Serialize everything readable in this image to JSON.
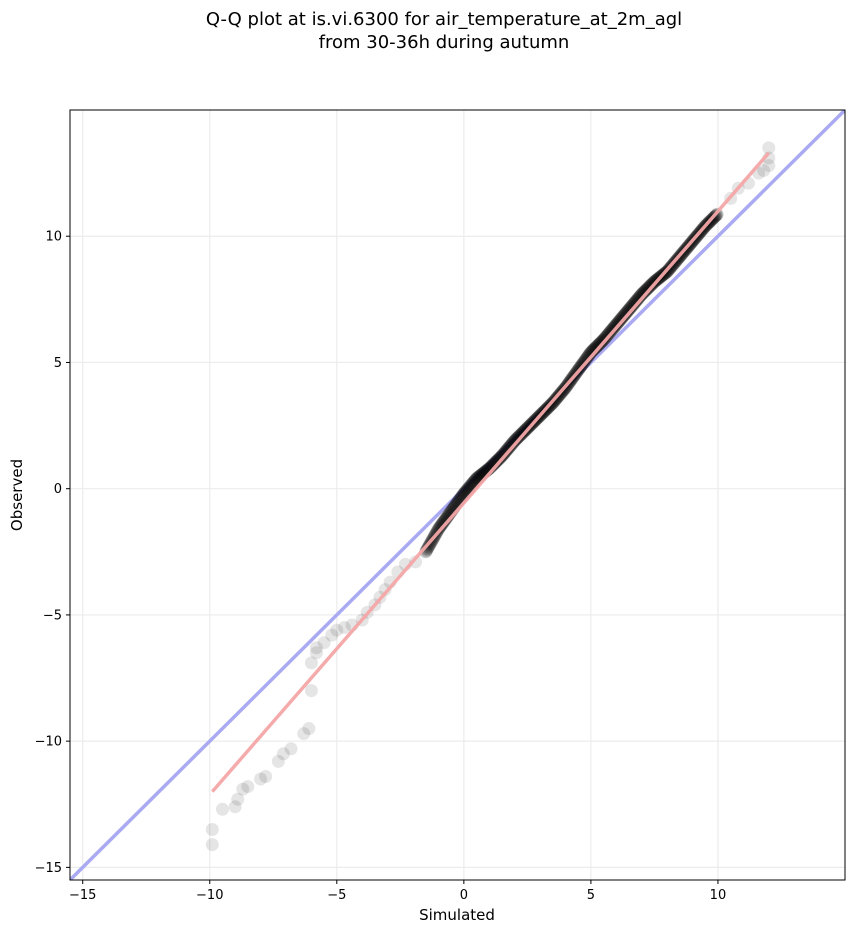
{
  "chart_data": {
    "type": "scatter",
    "title_line1": "Q-Q plot at is.vi.6300 for air_temperature_at_2m_agl",
    "title_line2": "from 30-36h during autumn",
    "xlabel": "Simulated",
    "ylabel": "Observed",
    "xlim": [
      -15.5,
      15.0
    ],
    "ylim": [
      -15.5,
      15.0
    ],
    "xticks": [
      -15,
      -10,
      -5,
      0,
      5,
      10
    ],
    "yticks": [
      -15,
      -10,
      -5,
      0,
      5,
      10
    ],
    "xtick_labels": [
      "−15",
      "−10",
      "−5",
      "0",
      "5",
      "10"
    ],
    "ytick_labels": [
      "−15",
      "−10",
      "−5",
      "0",
      "5",
      "10"
    ],
    "grid": true,
    "identity_line_color": "#aaaaf2",
    "fit_line_color": "#f4a6a6",
    "point_color": "#000000",
    "fit_line": {
      "x": [
        -9.9,
        12.0
      ],
      "y": [
        -12.0,
        13.3
      ]
    },
    "points_tail": [
      {
        "x": -9.9,
        "y": -14.1
      },
      {
        "x": -9.9,
        "y": -13.5
      },
      {
        "x": -9.5,
        "y": -12.7
      },
      {
        "x": -9.0,
        "y": -12.6
      },
      {
        "x": -8.9,
        "y": -12.3
      },
      {
        "x": -8.7,
        "y": -11.9
      },
      {
        "x": -8.5,
        "y": -11.8
      },
      {
        "x": -8.0,
        "y": -11.5
      },
      {
        "x": -7.8,
        "y": -11.4
      },
      {
        "x": -7.3,
        "y": -10.8
      },
      {
        "x": -7.1,
        "y": -10.5
      },
      {
        "x": -6.8,
        "y": -10.3
      },
      {
        "x": -6.3,
        "y": -9.7
      },
      {
        "x": -6.1,
        "y": -9.5
      },
      {
        "x": -6.0,
        "y": -8.0
      },
      {
        "x": -6.0,
        "y": -6.9
      },
      {
        "x": -5.8,
        "y": -6.5
      },
      {
        "x": -5.8,
        "y": -6.3
      },
      {
        "x": -5.5,
        "y": -6.1
      },
      {
        "x": -5.2,
        "y": -5.8
      },
      {
        "x": -5.0,
        "y": -5.6
      },
      {
        "x": -4.7,
        "y": -5.5
      },
      {
        "x": -4.4,
        "y": -5.4
      },
      {
        "x": -4.0,
        "y": -5.2
      },
      {
        "x": -3.8,
        "y": -4.9
      },
      {
        "x": -3.5,
        "y": -4.6
      },
      {
        "x": -3.3,
        "y": -4.3
      },
      {
        "x": -3.1,
        "y": -4.0
      },
      {
        "x": -2.9,
        "y": -3.7
      },
      {
        "x": -2.6,
        "y": -3.3
      },
      {
        "x": -2.3,
        "y": -3.0
      },
      {
        "x": -1.9,
        "y": -2.9
      },
      {
        "x": 10.5,
        "y": 11.5
      },
      {
        "x": 10.8,
        "y": 11.9
      },
      {
        "x": 11.2,
        "y": 12.1
      },
      {
        "x": 11.6,
        "y": 12.5
      },
      {
        "x": 11.8,
        "y": 12.6
      },
      {
        "x": 12.0,
        "y": 12.8
      },
      {
        "x": 12.0,
        "y": 13.1
      },
      {
        "x": 12.0,
        "y": 13.5
      }
    ],
    "points_dense": [
      {
        "x": -1.5,
        "y": -2.5
      },
      {
        "x": -1.0,
        "y": -1.6
      },
      {
        "x": -0.5,
        "y": -0.9
      },
      {
        "x": 0.0,
        "y": -0.2
      },
      {
        "x": 0.5,
        "y": 0.4
      },
      {
        "x": 1.0,
        "y": 0.8
      },
      {
        "x": 1.5,
        "y": 1.3
      },
      {
        "x": 2.0,
        "y": 1.9
      },
      {
        "x": 2.5,
        "y": 2.4
      },
      {
        "x": 3.0,
        "y": 2.9
      },
      {
        "x": 3.5,
        "y": 3.4
      },
      {
        "x": 4.0,
        "y": 4.0
      },
      {
        "x": 4.5,
        "y": 4.7
      },
      {
        "x": 5.0,
        "y": 5.4
      },
      {
        "x": 5.5,
        "y": 5.9
      },
      {
        "x": 6.0,
        "y": 6.5
      },
      {
        "x": 6.5,
        "y": 7.1
      },
      {
        "x": 7.0,
        "y": 7.7
      },
      {
        "x": 7.5,
        "y": 8.2
      },
      {
        "x": 8.0,
        "y": 8.6
      },
      {
        "x": 8.5,
        "y": 9.2
      },
      {
        "x": 9.0,
        "y": 9.8
      },
      {
        "x": 9.5,
        "y": 10.4
      },
      {
        "x": 10.0,
        "y": 10.9
      }
    ]
  }
}
